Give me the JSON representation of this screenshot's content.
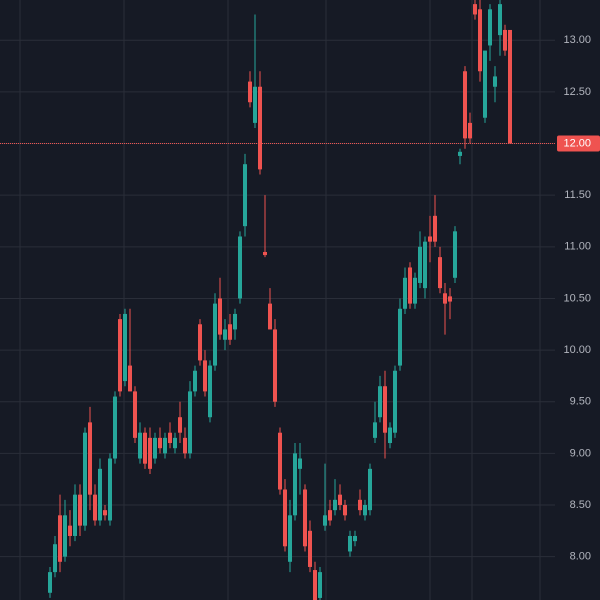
{
  "chart_data": {
    "type": "candlestick",
    "ylim": [
      7.58,
      13.39
    ],
    "yticks": [
      {
        "value": 8,
        "label": "8.00"
      },
      {
        "value": 8.5,
        "label": "8.50"
      },
      {
        "value": 9,
        "label": "9.00"
      },
      {
        "value": 9.5,
        "label": "9.50"
      },
      {
        "value": 10,
        "label": "10.00"
      },
      {
        "value": 10.5,
        "label": "10.50"
      },
      {
        "value": 11,
        "label": "11.00"
      },
      {
        "value": 11.5,
        "label": "11.50"
      },
      {
        "value": 12,
        "label": "12.00"
      },
      {
        "value": 12.5,
        "label": "12.50"
      },
      {
        "value": 13,
        "label": "13.00"
      }
    ],
    "grid": true,
    "up_color": "#26a69a",
    "down_color": "#ef5350",
    "last_price": {
      "value": 12,
      "label": "12.00",
      "color": "#ef5350"
    },
    "candles": [
      [
        7.65,
        7.9,
        7.6,
        7.85
      ],
      [
        7.85,
        8.2,
        7.8,
        8.12
      ],
      [
        8.4,
        8.6,
        7.85,
        7.95
      ],
      [
        8.0,
        8.55,
        7.95,
        8.4
      ],
      [
        8.3,
        8.45,
        8.1,
        8.2
      ],
      [
        8.2,
        8.7,
        8.15,
        8.6
      ],
      [
        8.6,
        8.7,
        8.2,
        8.3
      ],
      [
        8.3,
        9.25,
        8.25,
        9.2
      ],
      [
        9.3,
        9.45,
        8.45,
        8.6
      ],
      [
        8.6,
        8.7,
        8.3,
        8.35
      ],
      [
        8.35,
        8.95,
        8.3,
        8.85
      ],
      [
        8.45,
        8.5,
        8.35,
        8.4
      ],
      [
        8.35,
        9.0,
        8.3,
        8.95
      ],
      [
        8.95,
        9.6,
        8.9,
        9.55
      ],
      [
        10.3,
        10.35,
        9.55,
        9.6
      ],
      [
        9.7,
        10.4,
        9.65,
        10.35
      ],
      [
        9.85,
        10.4,
        9.6,
        9.6
      ],
      [
        9.6,
        9.65,
        9.1,
        9.15
      ],
      [
        8.95,
        9.3,
        8.9,
        9.2
      ],
      [
        9.2,
        9.25,
        8.85,
        8.9
      ],
      [
        9.15,
        9.25,
        8.8,
        8.85
      ],
      [
        8.95,
        9.2,
        8.9,
        9.15
      ],
      [
        9.15,
        9.25,
        9.0,
        9.05
      ],
      [
        9.0,
        9.2,
        8.95,
        9.15
      ],
      [
        9.2,
        9.3,
        9.05,
        9.1
      ],
      [
        9.05,
        9.2,
        9.0,
        9.15
      ],
      [
        9.35,
        9.5,
        9.1,
        9.2
      ],
      [
        9.15,
        9.25,
        8.95,
        9.0
      ],
      [
        9.0,
        9.7,
        8.95,
        9.6
      ],
      [
        9.6,
        9.85,
        9.55,
        9.8
      ],
      [
        10.25,
        10.3,
        9.85,
        9.9
      ],
      [
        9.9,
        10.0,
        9.55,
        9.6
      ],
      [
        9.35,
        9.9,
        9.3,
        9.85
      ],
      [
        9.85,
        10.55,
        9.8,
        10.45
      ],
      [
        10.5,
        10.7,
        10.1,
        10.15
      ],
      [
        10.1,
        10.3,
        10.0,
        10.2
      ],
      [
        10.25,
        10.35,
        10.05,
        10.1
      ],
      [
        10.2,
        10.4,
        10.1,
        10.35
      ],
      [
        10.5,
        11.15,
        10.45,
        11.1
      ],
      [
        11.2,
        11.9,
        11.1,
        11.8
      ],
      [
        12.6,
        12.7,
        12.35,
        12.4
      ],
      [
        12.2,
        13.25,
        12.15,
        12.55
      ],
      [
        12.55,
        12.7,
        11.7,
        11.75
      ],
      [
        10.95,
        11.5,
        10.9,
        10.92
      ],
      [
        10.45,
        10.6,
        10.2,
        10.2
      ],
      [
        10.2,
        10.3,
        9.45,
        9.5
      ],
      [
        9.2,
        9.25,
        8.6,
        8.65
      ],
      [
        8.65,
        8.75,
        8.05,
        8.1
      ],
      [
        7.95,
        8.55,
        7.85,
        8.4
      ],
      [
        8.4,
        9.1,
        8.35,
        9.0
      ],
      [
        8.85,
        9.1,
        8.6,
        8.95
      ],
      [
        8.65,
        8.7,
        8.05,
        8.1
      ],
      [
        8.25,
        8.35,
        7.85,
        7.9
      ],
      [
        7.87,
        7.95,
        7.5,
        7.55
      ],
      [
        7.6,
        7.9,
        7.55,
        7.85
      ],
      [
        8.3,
        8.9,
        8.25,
        8.4
      ],
      [
        8.45,
        8.55,
        8.3,
        8.35
      ],
      [
        8.45,
        8.75,
        8.4,
        8.55
      ],
      [
        8.6,
        8.7,
        8.45,
        8.5
      ],
      [
        8.5,
        8.55,
        8.35,
        8.4
      ],
      [
        8.05,
        8.25,
        8.0,
        8.2
      ],
      [
        8.15,
        8.25,
        8.1,
        8.2
      ],
      [
        8.55,
        8.65,
        8.4,
        8.45
      ],
      [
        8.4,
        8.55,
        8.35,
        8.5
      ],
      [
        8.45,
        8.9,
        8.4,
        8.85
      ],
      [
        9.15,
        9.5,
        9.1,
        9.3
      ],
      [
        9.35,
        9.75,
        9.3,
        9.65
      ],
      [
        9.65,
        9.8,
        8.95,
        9.2
      ],
      [
        9.1,
        9.3,
        9.05,
        9.25
      ],
      [
        9.2,
        9.85,
        9.15,
        9.8
      ],
      [
        9.85,
        10.5,
        9.8,
        10.4
      ],
      [
        10.4,
        10.8,
        10.35,
        10.7
      ],
      [
        10.8,
        10.85,
        10.4,
        10.45
      ],
      [
        10.45,
        10.75,
        10.4,
        10.7
      ],
      [
        10.65,
        11.15,
        10.6,
        11.0
      ],
      [
        10.6,
        11.1,
        10.5,
        11.05
      ],
      [
        11.1,
        11.3,
        10.85,
        11.05
      ],
      [
        11.3,
        11.5,
        11.0,
        11.05
      ],
      [
        10.9,
        11.0,
        10.55,
        10.6
      ],
      [
        10.55,
        10.65,
        10.15,
        10.45
      ],
      [
        10.52,
        10.6,
        10.3,
        10.47
      ],
      [
        10.7,
        11.2,
        10.65,
        11.15
      ],
      [
        11.88,
        11.95,
        11.8,
        11.92
      ],
      [
        12.7,
        12.75,
        11.95,
        12.05
      ],
      [
        12.2,
        12.3,
        12.0,
        12.05
      ],
      [
        13.35,
        13.39,
        13.2,
        13.25
      ],
      [
        13.3,
        13.39,
        12.6,
        12.7
      ],
      [
        12.25,
        12.9,
        12.2,
        12.9
      ],
      [
        12.95,
        13.35,
        12.8,
        13.3
      ],
      [
        12.55,
        12.75,
        12.4,
        12.65
      ],
      [
        13.05,
        13.39,
        12.85,
        13.35
      ],
      [
        13.1,
        13.15,
        12.85,
        12.9
      ],
      [
        13.1,
        13.1,
        12.0,
        12.0
      ]
    ]
  }
}
